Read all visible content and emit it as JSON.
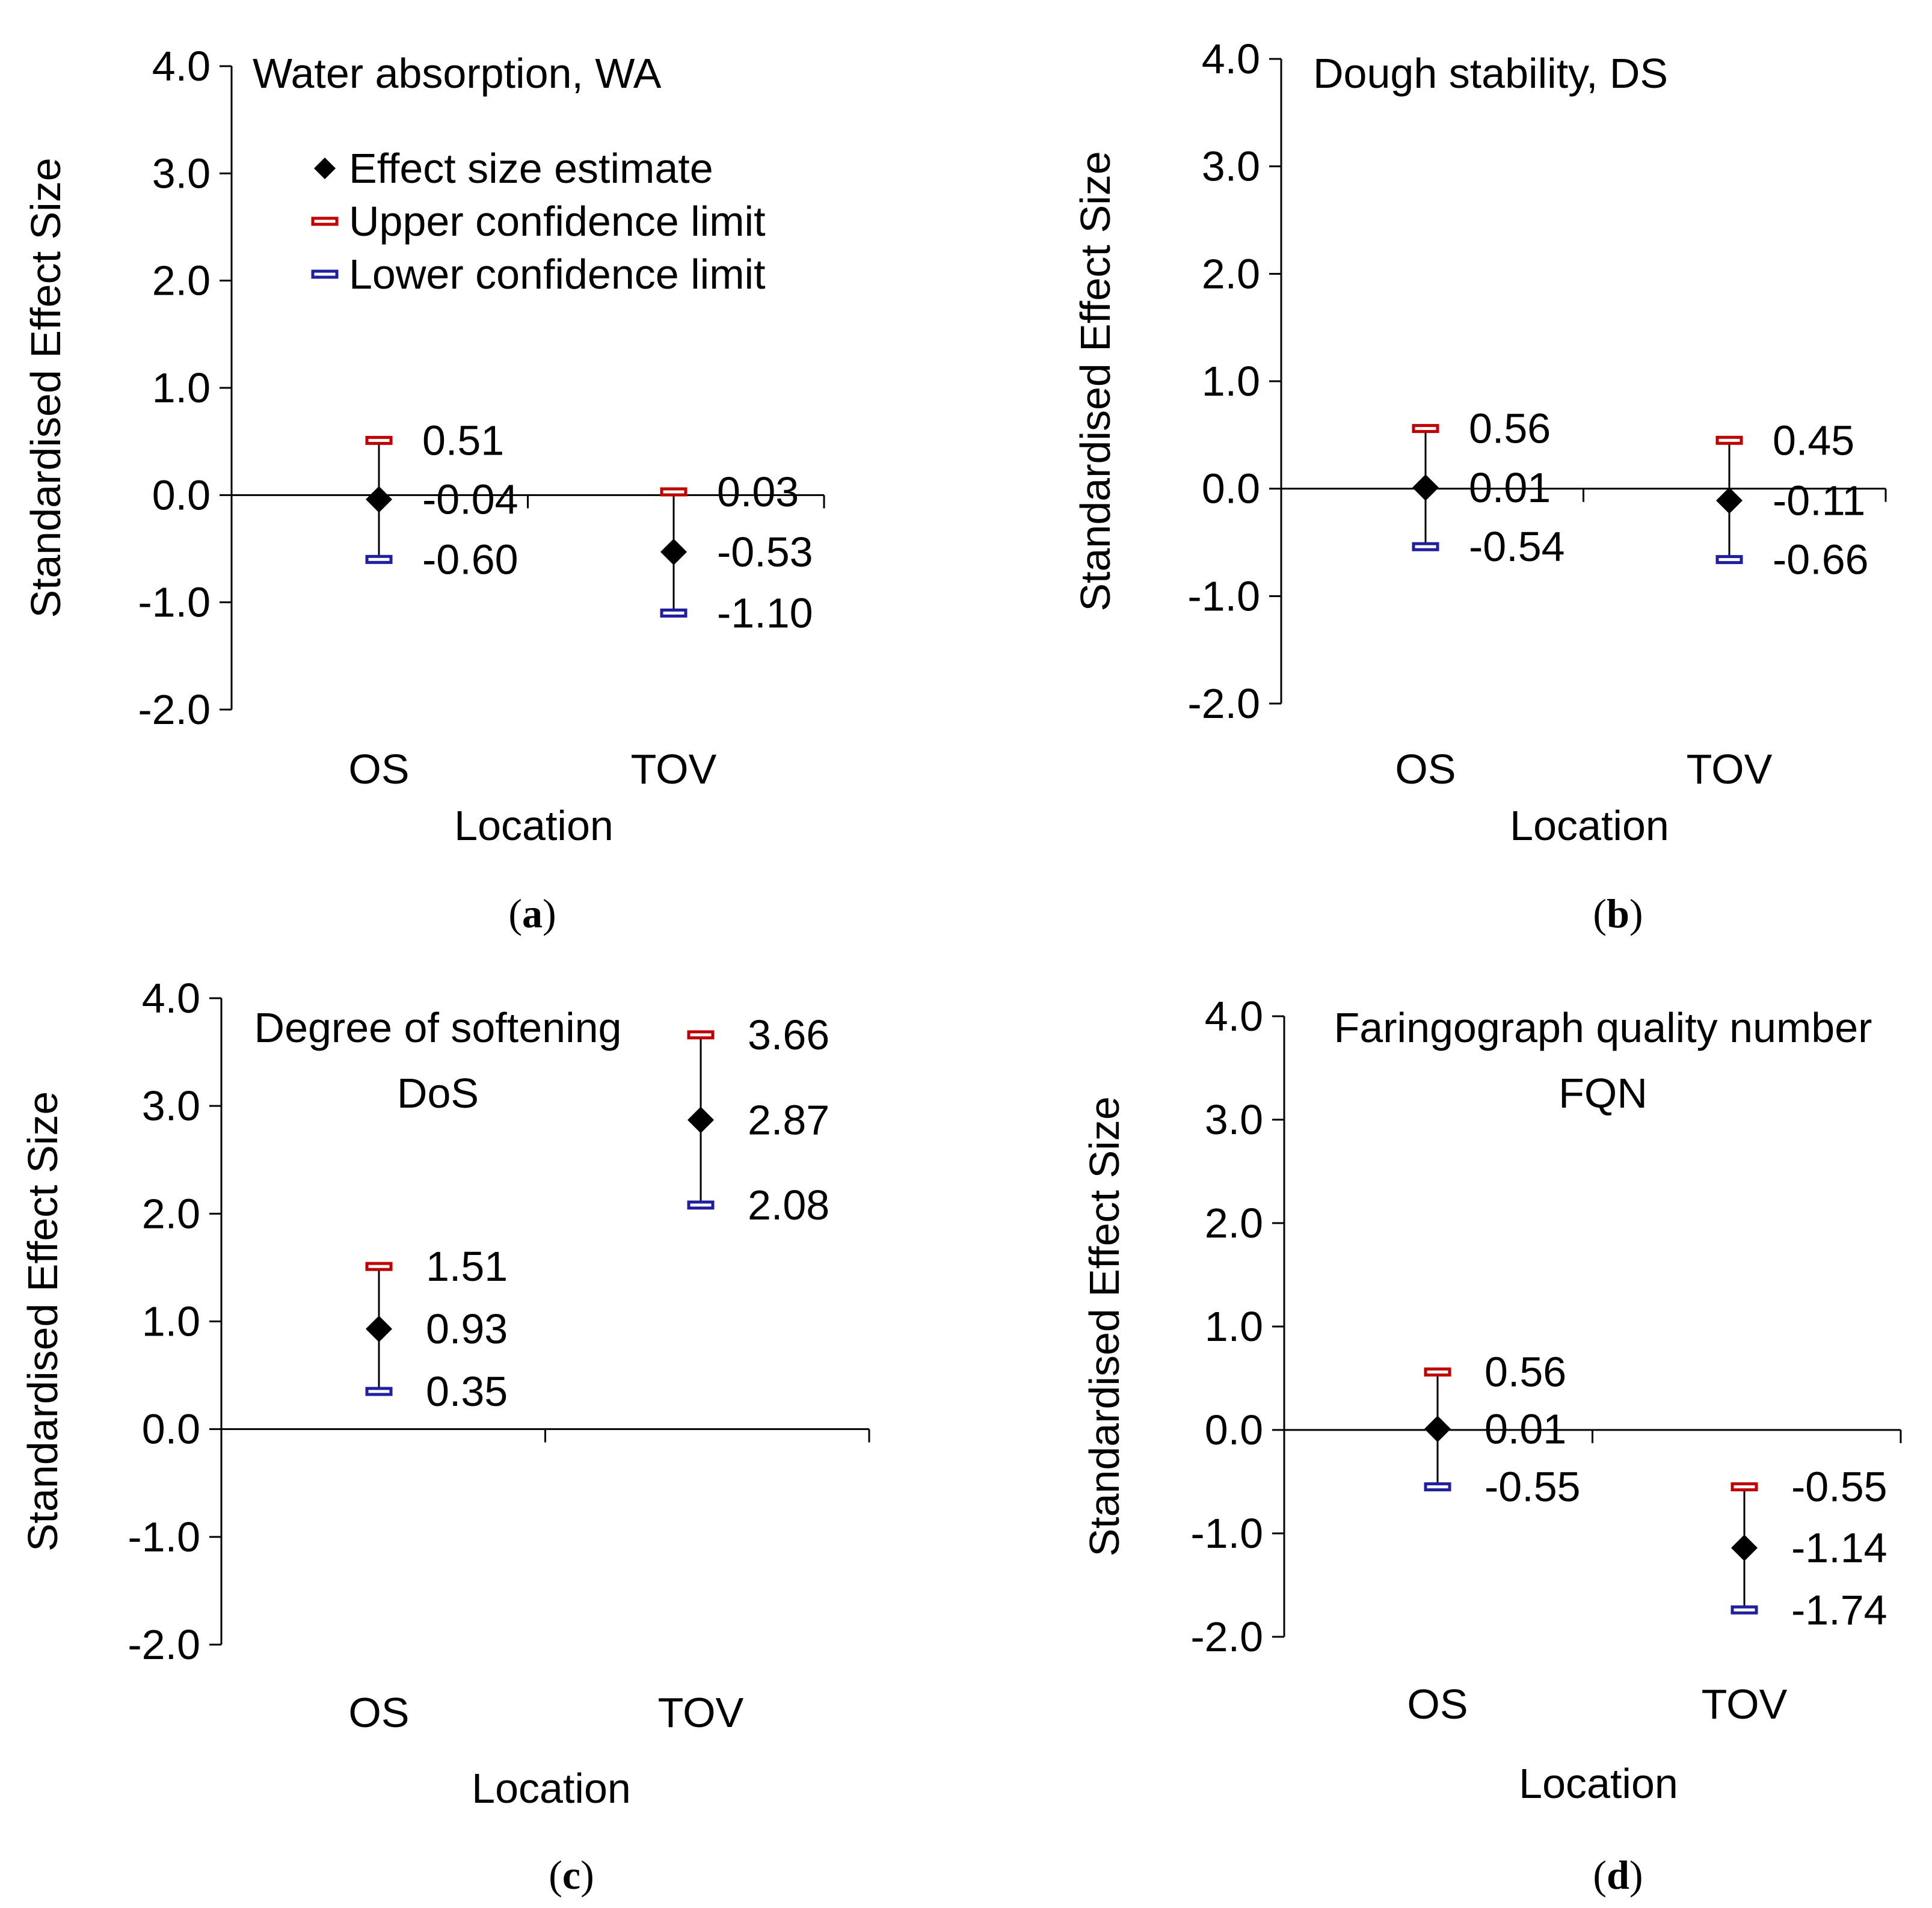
{
  "figure": {
    "x_axis_label": "Location",
    "y_axis_label": "Standardised Effect Size",
    "legend": {
      "items": [
        {
          "label": "Effect size estimate",
          "marker": "diamond",
          "color": "#000000"
        },
        {
          "label": "Upper confidence limit",
          "marker": "cap",
          "color": "#c00000"
        },
        {
          "label": "Lower confidence limit",
          "marker": "cap",
          "color": "#1f1f9f"
        }
      ]
    },
    "colors": {
      "upper": "#c00000",
      "lower": "#1f1f9f",
      "estimate": "#000000",
      "axis": "#000000"
    }
  },
  "chart_data": [
    {
      "type": "scatter",
      "panel": "a",
      "title": "Water absorption, WA",
      "xlabel": "Location",
      "ylabel": "Standardised Effect Size",
      "ylim": [
        -2.0,
        4.0
      ],
      "yticks": [
        "4.0",
        "3.0",
        "2.0",
        "1.0",
        "0.0",
        "-1.0",
        "-2.0"
      ],
      "categories": [
        "OS",
        "TOV"
      ],
      "estimate": [
        -0.04,
        -0.53
      ],
      "upper": [
        0.51,
        0.03
      ],
      "lower": [
        -0.6,
        -1.1
      ],
      "estimate_labels": [
        "-0.04",
        "-0.53"
      ],
      "upper_labels": [
        "0.51",
        "0.03"
      ],
      "lower_labels": [
        "-0.60",
        "-1.10"
      ],
      "legend": "top-left"
    },
    {
      "type": "scatter",
      "panel": "b",
      "title": "Dough stability, DS",
      "xlabel": "Location",
      "ylabel": "Standardised Effect Size",
      "ylim": [
        -2.0,
        4.0
      ],
      "yticks": [
        "4.0",
        "3.0",
        "2.0",
        "1.0",
        "0.0",
        "-1.0",
        "-2.0"
      ],
      "categories": [
        "OS",
        "TOV"
      ],
      "estimate": [
        0.01,
        -0.11
      ],
      "upper": [
        0.56,
        0.45
      ],
      "lower": [
        -0.54,
        -0.66
      ],
      "estimate_labels": [
        "0.01",
        "-0.11"
      ],
      "upper_labels": [
        "0.56",
        "0.45"
      ],
      "lower_labels": [
        "-0.54",
        "-0.66"
      ]
    },
    {
      "type": "scatter",
      "panel": "c",
      "title": "Degree of softening",
      "title_line2": "DoS",
      "xlabel": "Location",
      "ylabel": "Standardised Effect Size",
      "ylim": [
        -2.0,
        4.0
      ],
      "yticks": [
        "4.0",
        "3.0",
        "2.0",
        "1.0",
        "0.0",
        "-1.0",
        "-2.0"
      ],
      "categories": [
        "OS",
        "TOV"
      ],
      "estimate": [
        0.93,
        2.87
      ],
      "upper": [
        1.51,
        3.66
      ],
      "lower": [
        0.35,
        2.08
      ],
      "estimate_labels": [
        "0.93",
        "2.87"
      ],
      "upper_labels": [
        "1.51",
        "3.66"
      ],
      "lower_labels": [
        "0.35",
        "2.08"
      ]
    },
    {
      "type": "scatter",
      "panel": "d",
      "title": "Faringograph quality number",
      "title_line2": "FQN",
      "xlabel": "Location",
      "ylabel": "Standardised Effect Size",
      "ylim": [
        -2.0,
        4.0
      ],
      "yticks": [
        "4.0",
        "3.0",
        "2.0",
        "1.0",
        "0.0",
        "-1.0",
        "-2.0"
      ],
      "categories": [
        "OS",
        "TOV"
      ],
      "estimate": [
        0.01,
        -1.14
      ],
      "upper": [
        0.56,
        -0.55
      ],
      "lower": [
        -0.55,
        -1.74
      ],
      "estimate_labels": [
        "0.01",
        "-1.14"
      ],
      "upper_labels": [
        "0.56",
        "-0.55"
      ],
      "lower_labels": [
        "-0.55",
        "-1.74"
      ]
    }
  ],
  "panel_labels": [
    "a",
    "b",
    "c",
    "d"
  ]
}
